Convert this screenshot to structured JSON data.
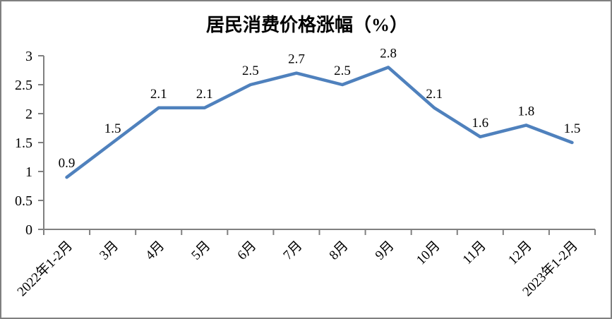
{
  "chart_data": {
    "type": "line",
    "title": "居民消费价格涨幅（%）",
    "categories": [
      "2022年1-2月",
      "3月",
      "4月",
      "5月",
      "6月",
      "7月",
      "8月",
      "9月",
      "10月",
      "11月",
      "12月",
      "2023年1-2月"
    ],
    "values": [
      0.9,
      1.5,
      2.1,
      2.1,
      2.5,
      2.7,
      2.5,
      2.8,
      2.1,
      1.6,
      1.8,
      1.5
    ],
    "data_labels": [
      "0.9",
      "1.5",
      "2.1",
      "2.1",
      "2.5",
      "2.7",
      "2.5",
      "2.8",
      "2.1",
      "1.6",
      "1.8",
      "1.5"
    ],
    "xlabel": "",
    "ylabel": "",
    "ylim": [
      0,
      3
    ],
    "ytick_step": 0.5,
    "ytick_labels": [
      "0",
      "0.5",
      "1",
      "1.5",
      "2",
      "2.5",
      "3"
    ],
    "grid": false,
    "legend_position": "none",
    "x_label_rotation_deg": 45,
    "colors": {
      "line": "#4F81BD",
      "axis": "#808080",
      "frame_border": "#808080",
      "text": "#000000",
      "background": "#ffffff"
    }
  }
}
